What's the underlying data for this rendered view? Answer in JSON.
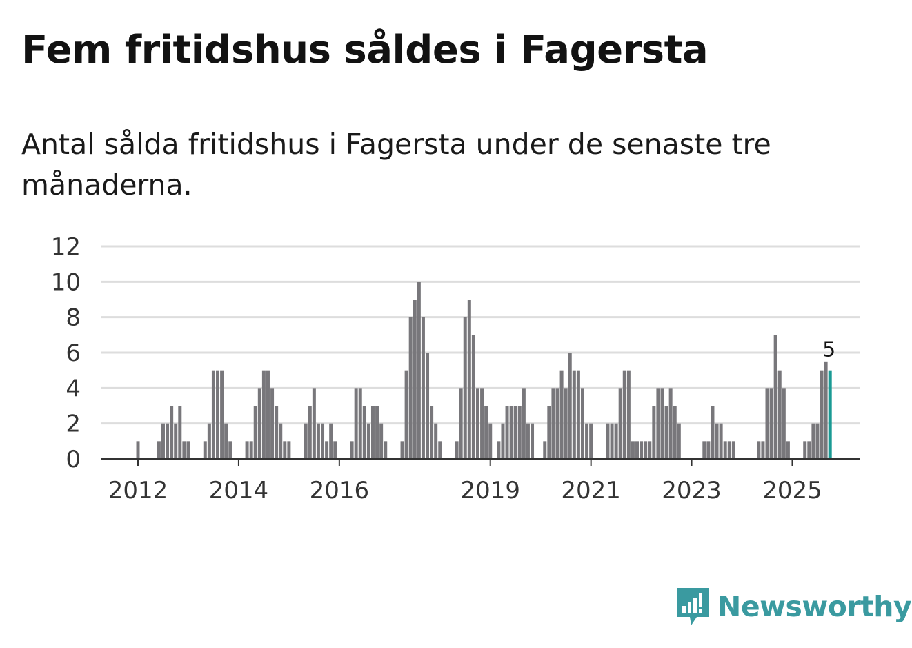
{
  "title": "Fem fritidshus såldes i Fagersta",
  "subtitle": "Antal sålda fritidshus i Fagersta under de senaste tre månaderna.",
  "brand": {
    "name": "Newsworthy",
    "icon": "newsworthy-logo-icon",
    "color": "#3a9aa0"
  },
  "colors": {
    "bar": "#78777b",
    "highlight": "#1a9a94",
    "grid": "#dddddd",
    "axis": "#333333"
  },
  "chart_data": {
    "type": "bar",
    "title": "Fem fritidshus såldes i Fagersta",
    "xlabel": "",
    "ylabel": "",
    "ylim": [
      0,
      12
    ],
    "yticks": [
      0,
      2,
      4,
      6,
      8,
      10,
      12
    ],
    "xticks": [
      {
        "label": "2012",
        "index": 0
      },
      {
        "label": "2014",
        "index": 24
      },
      {
        "label": "2016",
        "index": 48
      },
      {
        "label": "2019",
        "index": 84
      },
      {
        "label": "2021",
        "index": 108
      },
      {
        "label": "2023",
        "index": 132
      },
      {
        "label": "2025",
        "index": 156
      }
    ],
    "start": "2012-01",
    "values": [
      1,
      0,
      0,
      0,
      0,
      1,
      2,
      2,
      3,
      2,
      3,
      1,
      1,
      0,
      0,
      0,
      1,
      2,
      5,
      5,
      5,
      2,
      1,
      0,
      0,
      0,
      1,
      1,
      3,
      4,
      5,
      5,
      4,
      3,
      2,
      1,
      1,
      0,
      0,
      0,
      2,
      3,
      4,
      2,
      2,
      1,
      2,
      1,
      0,
      0,
      0,
      1,
      4,
      4,
      3,
      2,
      3,
      3,
      2,
      1,
      0,
      0,
      0,
      1,
      5,
      8,
      9,
      10,
      8,
      6,
      3,
      2,
      1,
      0,
      0,
      0,
      1,
      4,
      8,
      9,
      7,
      4,
      4,
      3,
      2,
      0,
      1,
      2,
      3,
      3,
      3,
      3,
      4,
      2,
      2,
      0,
      0,
      1,
      3,
      4,
      4,
      5,
      4,
      6,
      5,
      5,
      4,
      2,
      2,
      0,
      0,
      0,
      2,
      2,
      2,
      4,
      5,
      5,
      1,
      1,
      1,
      1,
      1,
      3,
      4,
      4,
      3,
      4,
      3,
      2,
      0,
      0,
      0,
      0,
      0,
      1,
      1,
      3,
      2,
      2,
      1,
      1,
      1,
      0,
      0,
      0,
      0,
      0,
      1,
      1,
      4,
      4,
      7,
      5,
      4,
      1,
      0,
      0,
      0,
      1,
      1,
      2,
      2,
      5,
      5.5,
      5
    ],
    "highlight": {
      "index": 165,
      "value": 5,
      "label": "5"
    }
  }
}
